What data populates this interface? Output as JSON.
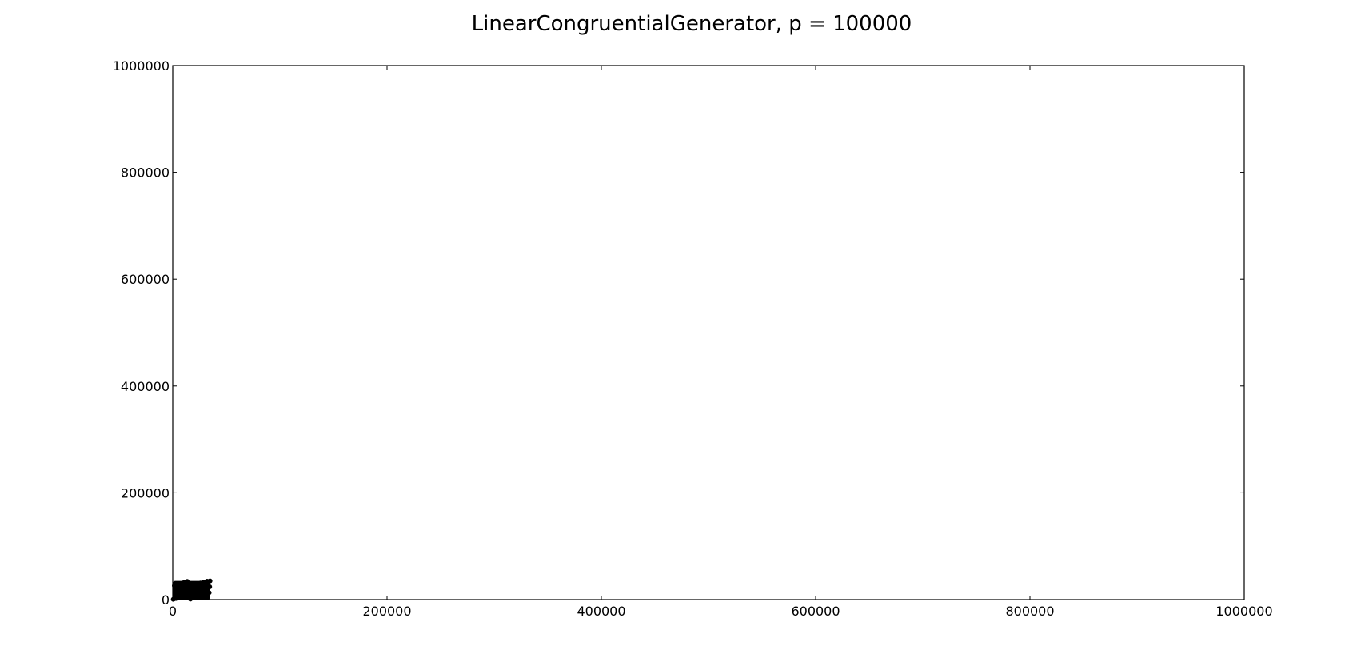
{
  "chart_data": {
    "type": "scatter",
    "title": "LinearCongruentialGenerator, p = 100000",
    "xlabel": "",
    "ylabel": "",
    "xlim": [
      0,
      1000000
    ],
    "ylim": [
      0,
      1000000
    ],
    "x_ticks": [
      0,
      200000,
      400000,
      600000,
      800000,
      1000000
    ],
    "y_ticks": [
      0,
      200000,
      400000,
      600000,
      800000,
      1000000
    ],
    "x_tick_labels": [
      "0",
      "200000",
      "400000",
      "600000",
      "800000",
      "1000000"
    ],
    "y_tick_labels": [
      "0",
      "200000",
      "400000",
      "600000",
      "800000",
      "1000000"
    ],
    "grid": false,
    "marker_color": "#000000",
    "points_region": {
      "description_x_range": [
        0,
        35000
      ],
      "description_y_range": [
        0,
        35000
      ]
    },
    "series": [
      {
        "values_x": [
          500,
          3000,
          6000,
          9000,
          12000,
          15000,
          18000,
          21000,
          24000,
          27000,
          30000,
          33000,
          34500,
          1500,
          4500,
          7500,
          10500,
          13500,
          16500,
          19500,
          22500,
          25500,
          28500,
          31500,
          34000,
          2000,
          5000,
          8000,
          11000,
          14000,
          17000,
          20000,
          23000,
          26000,
          29000,
          32000,
          34800
        ],
        "values_y": [
          500,
          2000,
          4000,
          6000,
          8000,
          10000,
          12000,
          14000,
          16000,
          18000,
          20000,
          22000,
          24000,
          26000,
          28000,
          30000,
          32000,
          34000,
          1000,
          3000,
          5000,
          7000,
          9000,
          11000,
          13000,
          15000,
          17000,
          19000,
          21000,
          23000,
          25000,
          27000,
          29000,
          31000,
          33000,
          34500,
          35000
        ]
      }
    ]
  }
}
